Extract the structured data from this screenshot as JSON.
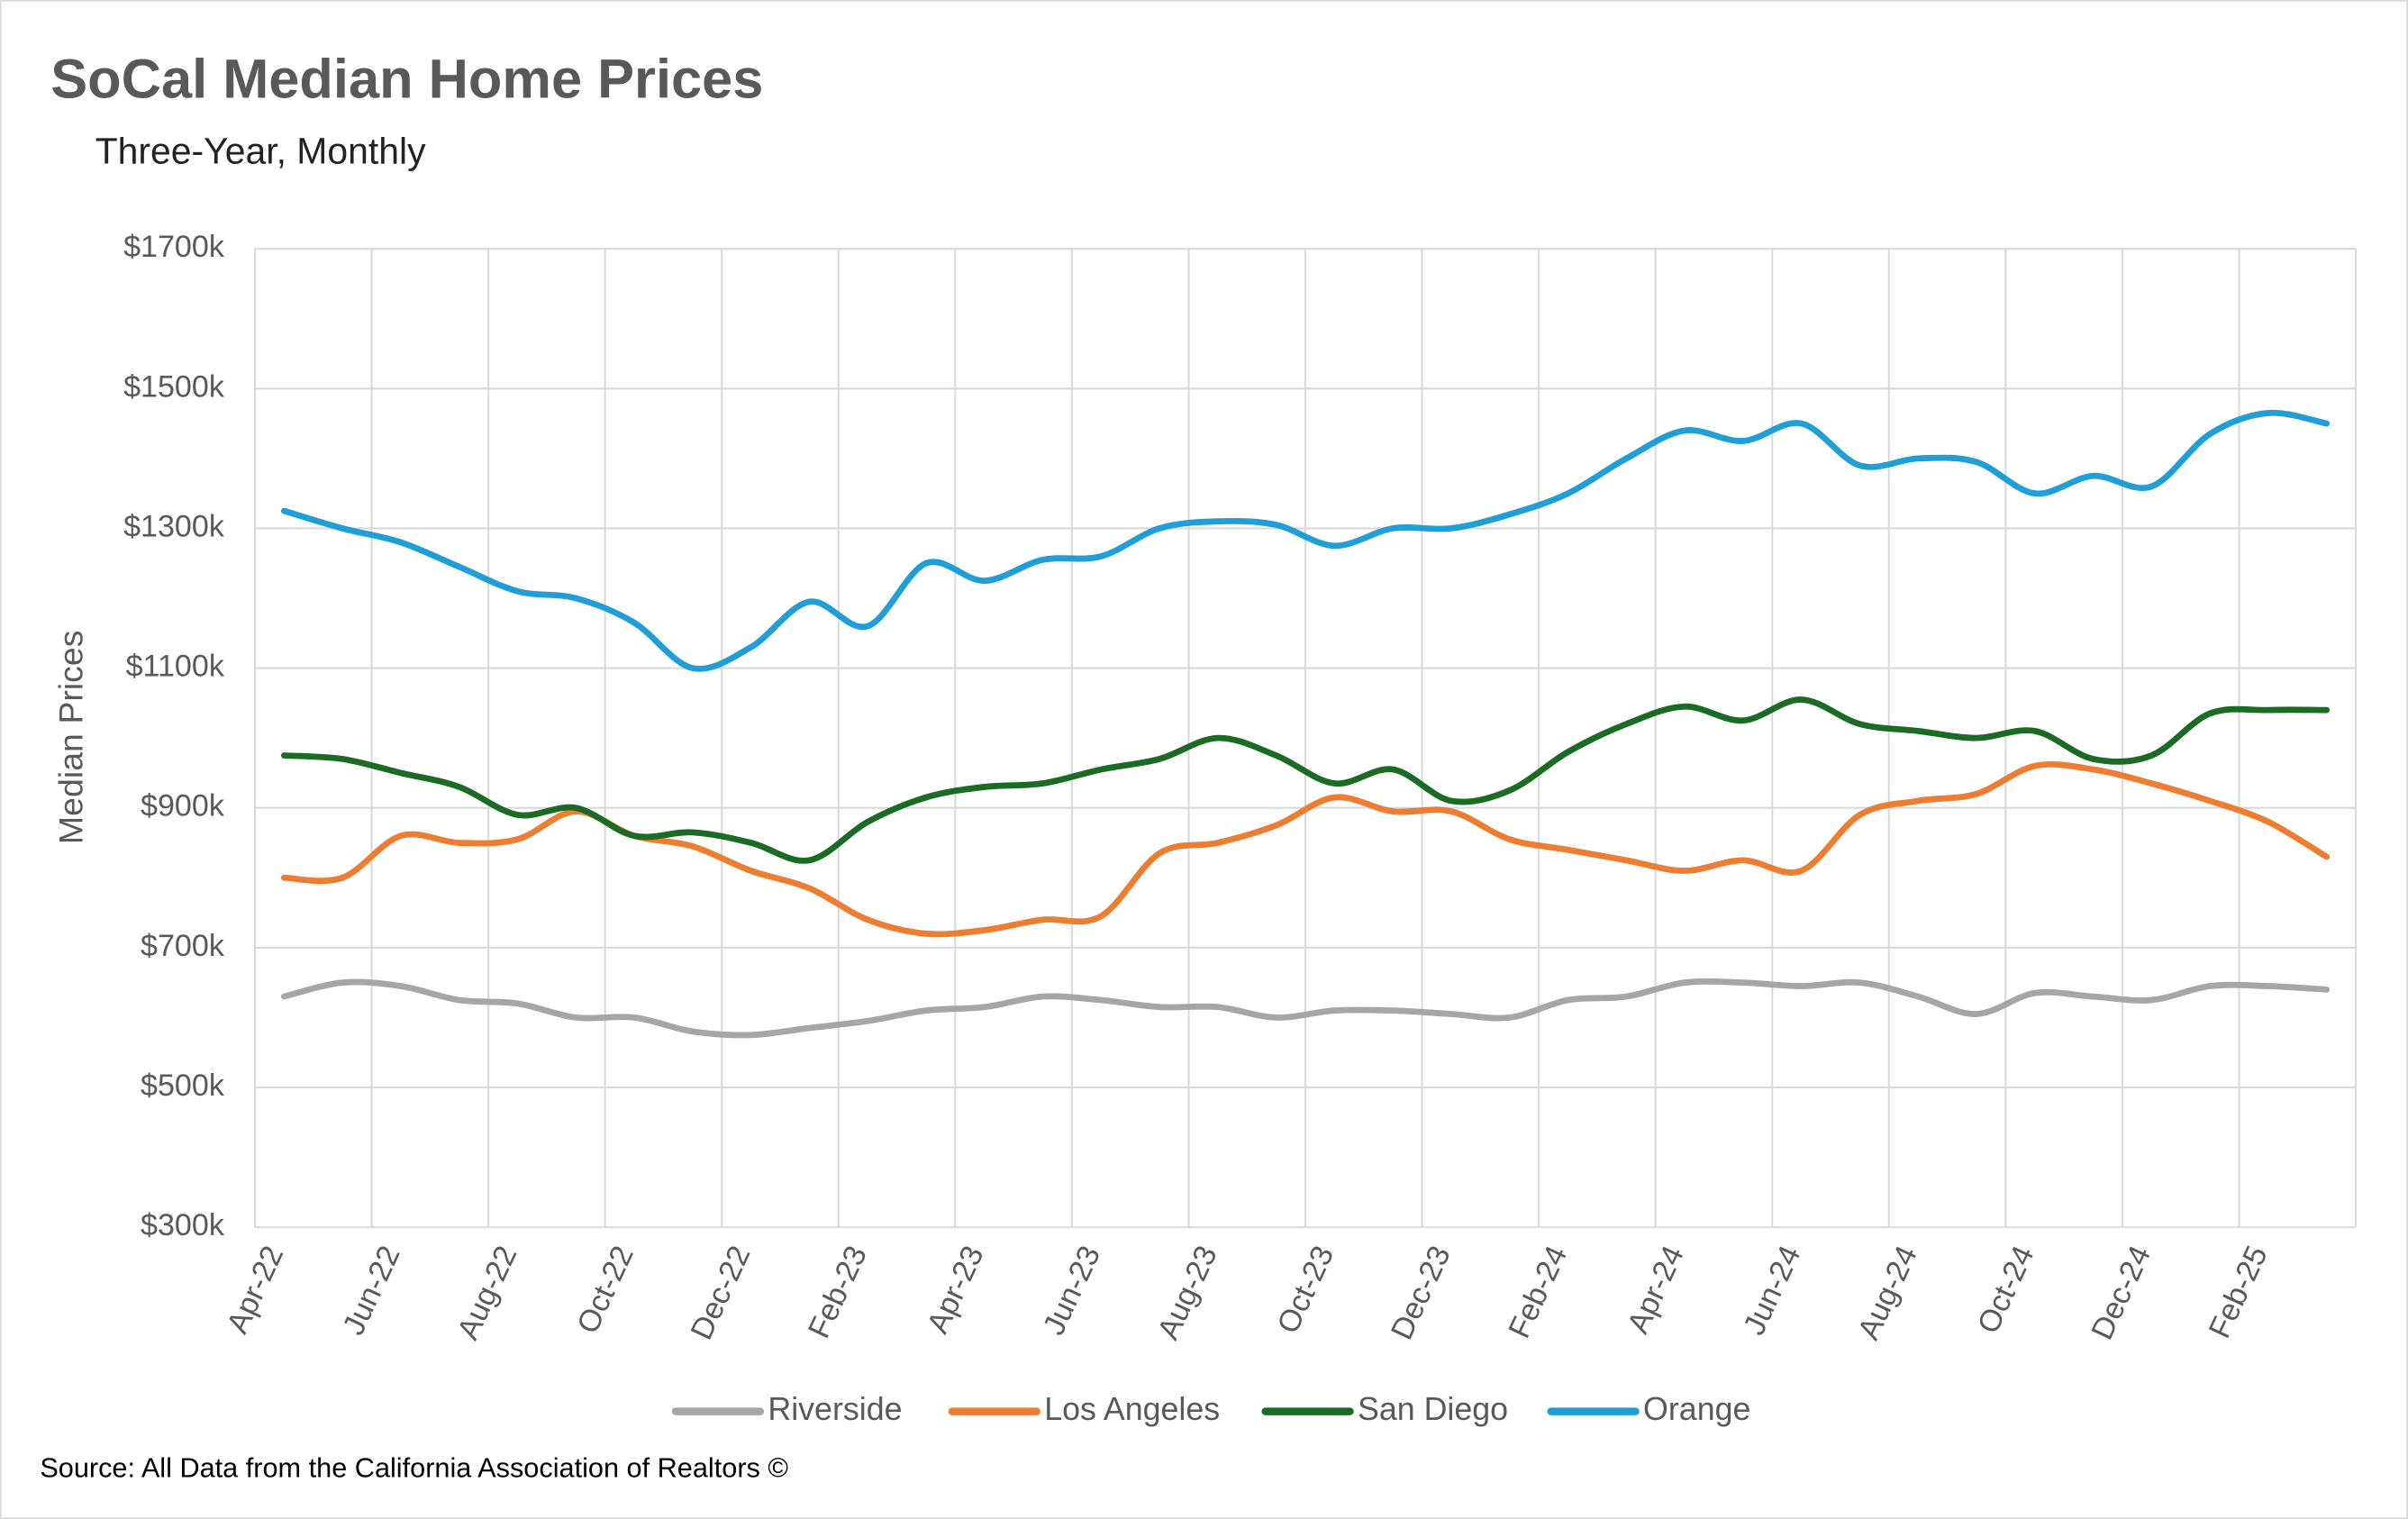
{
  "chart_data": {
    "type": "line",
    "title": "SoCal Median Home Prices",
    "subtitle": "Three-Year, Monthly",
    "y_label": "Median Prices",
    "source": "Source: All Data from the California Association of Realtors ©",
    "categories": [
      "Apr-22",
      null,
      "Jun-22",
      null,
      "Aug-22",
      null,
      "Oct-22",
      null,
      "Dec-22",
      null,
      "Feb-23",
      null,
      "Apr-23",
      null,
      "Jun-23",
      null,
      "Aug-23",
      null,
      "Oct-23",
      null,
      "Dec-23",
      null,
      "Feb-24",
      null,
      "Apr-24",
      null,
      "Jun-24",
      null,
      "Aug-24",
      null,
      "Oct-24",
      null,
      "Dec-24",
      null,
      "Feb-25",
      null
    ],
    "ylim": [
      300,
      1700
    ],
    "yticks": [
      {
        "value": 300,
        "label": "$300k"
      },
      {
        "value": 500,
        "label": "$500k"
      },
      {
        "value": 700,
        "label": "$700k"
      },
      {
        "value": 900,
        "label": "$900k"
      },
      {
        "value": 1100,
        "label": "$1100k"
      },
      {
        "value": 1300,
        "label": "$1300k"
      },
      {
        "value": 1500,
        "label": "$1500k"
      },
      {
        "value": 1700,
        "label": "$1700k"
      }
    ],
    "grid": true,
    "legend": "bottom",
    "series": [
      {
        "name": "Riverside",
        "color": "#a6a6a6",
        "values": [
          630,
          650,
          645,
          625,
          620,
          600,
          600,
          580,
          575,
          585,
          595,
          610,
          615,
          630,
          625,
          615,
          615,
          600,
          610,
          610,
          605,
          600,
          625,
          630,
          650,
          650,
          645,
          650,
          630,
          605,
          635,
          630,
          625,
          645,
          645,
          640
        ]
      },
      {
        "name": "Los Angeles",
        "color": "#ed7d31",
        "values": [
          800,
          800,
          860,
          850,
          855,
          895,
          860,
          845,
          810,
          785,
          740,
          720,
          725,
          740,
          745,
          835,
          850,
          875,
          915,
          895,
          895,
          855,
          840,
          825,
          810,
          825,
          810,
          890,
          910,
          920,
          960,
          955,
          935,
          910,
          880,
          830
        ]
      },
      {
        "name": "San Diego",
        "color": "#1a6b24",
        "values": [
          975,
          970,
          950,
          930,
          890,
          900,
          860,
          865,
          850,
          825,
          880,
          915,
          930,
          935,
          955,
          970,
          1000,
          975,
          935,
          955,
          910,
          925,
          980,
          1020,
          1045,
          1025,
          1055,
          1020,
          1010,
          1000,
          1010,
          970,
          975,
          1035,
          1040,
          1040
        ]
      },
      {
        "name": "Orange",
        "color": "#1f9fd6",
        "values": [
          1325,
          1300,
          1280,
          1245,
          1210,
          1200,
          1165,
          1100,
          1130,
          1195,
          1160,
          1250,
          1225,
          1255,
          1260,
          1300,
          1310,
          1305,
          1275,
          1300,
          1300,
          1320,
          1350,
          1400,
          1440,
          1425,
          1450,
          1390,
          1400,
          1395,
          1350,
          1375,
          1360,
          1435,
          1465,
          1450
        ]
      }
    ]
  }
}
